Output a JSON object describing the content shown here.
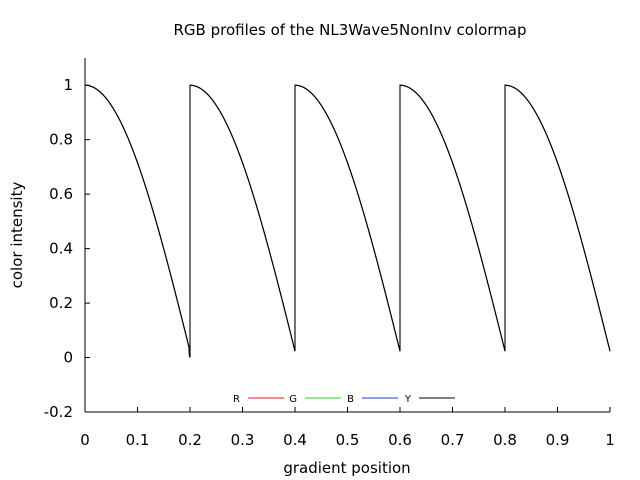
{
  "chart_data": {
    "type": "line",
    "title": "RGB profiles of the NL3Wave5NonInv colormap",
    "xlabel": "gradient position",
    "ylabel": "color intensity",
    "xlim": [
      0,
      1
    ],
    "ylim": [
      -0.2,
      1.1
    ],
    "x_ticks": [
      "0",
      "0.1",
      "0.2",
      "0.3",
      "0.4",
      "0.5",
      "0.6",
      "0.7",
      "0.8",
      "0.9",
      "1"
    ],
    "y_ticks": [
      "-0.2",
      "0",
      "0.2",
      "0.4",
      "0.6",
      "0.8",
      "1"
    ],
    "grid": false,
    "legend_placement": "bottom-center",
    "series": [
      {
        "name": "R",
        "color": "#e41a1c"
      },
      {
        "name": "G",
        "color": "#33cc33"
      },
      {
        "name": "B",
        "color": "#1f3fbf"
      },
      {
        "name": "Y",
        "color": "#000000"
      }
    ],
    "x": [
      0,
      0.05,
      0.1,
      0.15,
      0.2,
      0.2001,
      0.25,
      0.3,
      0.35,
      0.4,
      0.4001,
      0.45,
      0.5,
      0.55,
      0.6,
      0.6001,
      0.65,
      0.7,
      0.75,
      0.8,
      0.8001,
      0.85,
      0.9,
      0.95,
      1
    ],
    "y": [
      1,
      0.92,
      0.72,
      0.4,
      0,
      1,
      0.92,
      0.72,
      0.4,
      0.03,
      1,
      0.92,
      0.72,
      0.4,
      0.03,
      1,
      0.92,
      0.72,
      0.4,
      0.03,
      1,
      0.92,
      0.72,
      0.4,
      0.03
    ]
  }
}
